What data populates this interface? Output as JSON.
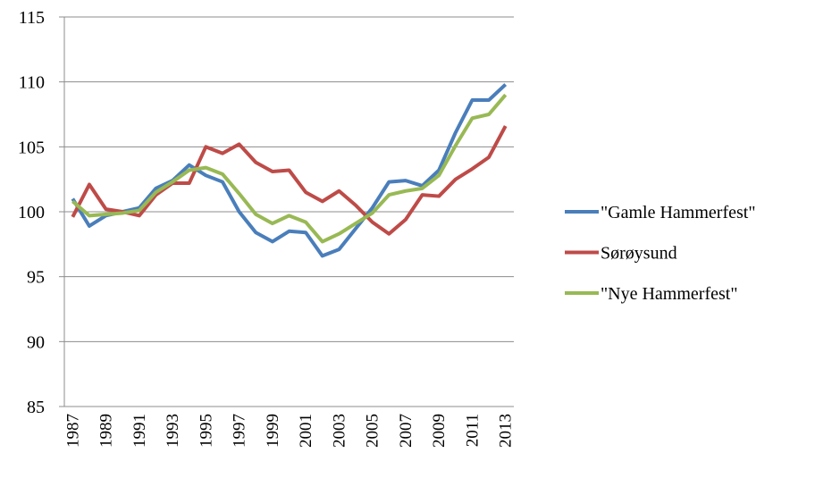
{
  "chart_data": {
    "type": "line",
    "categories": [
      "1987",
      null,
      "1989",
      null,
      "1991",
      null,
      "1993",
      null,
      "1995",
      null,
      "1997",
      null,
      "1999",
      null,
      "2001",
      null,
      "2003",
      null,
      "2005",
      null,
      "2007",
      null,
      "2009",
      null,
      "2011",
      null,
      "2013"
    ],
    "series": [
      {
        "name": "\"Gamle Hammerfest\"",
        "color": "#4a7ebb",
        "values": [
          101.0,
          98.9,
          99.7,
          100.0,
          100.3,
          101.8,
          102.4,
          103.6,
          102.8,
          102.3,
          100.0,
          98.4,
          97.7,
          98.5,
          98.4,
          96.6,
          97.1,
          98.7,
          100.3,
          102.3,
          102.4,
          102.0,
          103.2,
          106.1,
          108.6,
          108.6,
          109.8
        ]
      },
      {
        "name": "Sørøysund",
        "color": "#be4b48",
        "values": [
          99.6,
          102.1,
          100.2,
          100.0,
          99.7,
          101.3,
          102.2,
          102.2,
          105.0,
          104.5,
          105.2,
          103.8,
          103.1,
          103.2,
          101.5,
          100.8,
          101.6,
          100.5,
          99.2,
          98.3,
          99.4,
          101.3,
          101.2,
          102.5,
          103.3,
          104.2,
          106.6
        ]
      },
      {
        "name": "\"Nye Hammerfest\"",
        "color": "#98b954",
        "values": [
          100.8,
          99.7,
          99.8,
          99.9,
          100.1,
          101.5,
          102.3,
          103.2,
          103.4,
          102.9,
          101.4,
          99.8,
          99.1,
          99.7,
          99.2,
          97.7,
          98.3,
          99.1,
          99.9,
          101.3,
          101.6,
          101.8,
          102.8,
          105.1,
          107.2,
          107.5,
          109.0
        ]
      }
    ],
    "ylim": [
      85,
      115
    ],
    "yticks": [
      85,
      90,
      95,
      100,
      105,
      110,
      115
    ],
    "grid": true,
    "legend": "right"
  }
}
